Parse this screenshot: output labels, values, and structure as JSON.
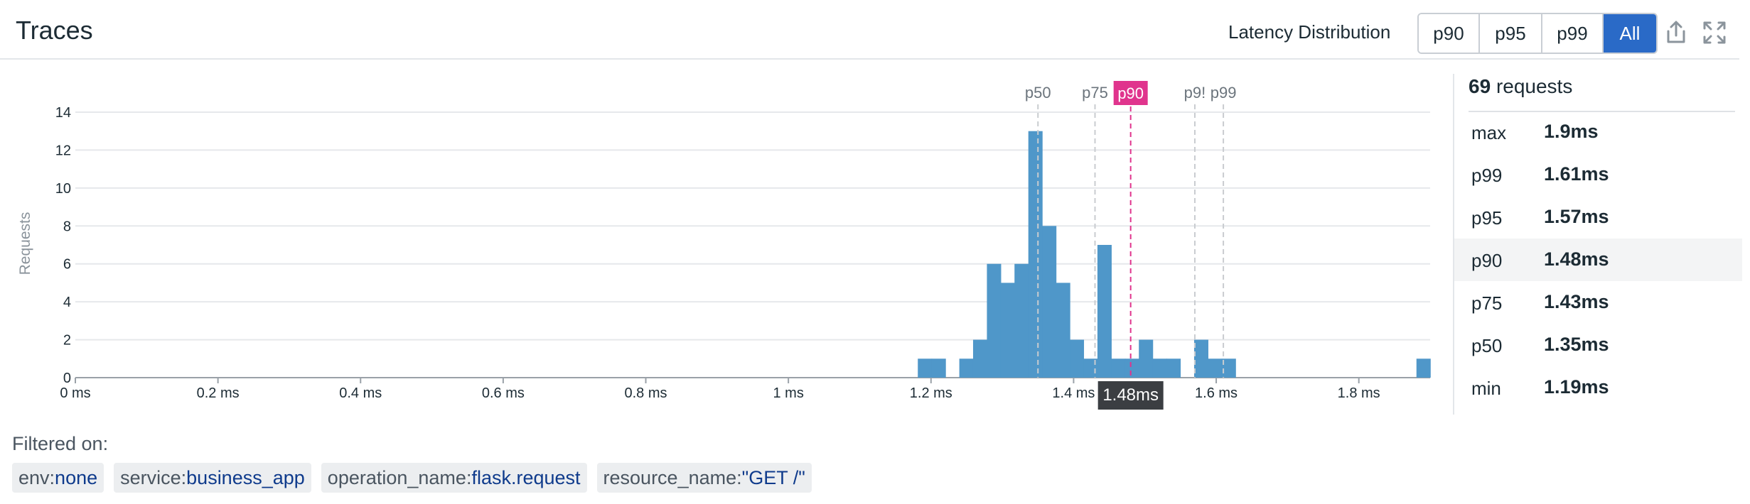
{
  "header": {
    "title": "Traces",
    "latency_label": "Latency Distribution",
    "buttons": [
      "p90",
      "p95",
      "p99",
      "All"
    ],
    "active_button": "All",
    "icons": [
      "share-icon",
      "expand-icon"
    ]
  },
  "colors": {
    "bar": "#4f97c9",
    "marker_highlight": "#e0348d",
    "active_button": "#2a6ac7",
    "percentile_line": "#c9ccd0"
  },
  "chart_data": {
    "type": "bar",
    "ylabel": "Requests",
    "xlabel": "",
    "xlim": [
      0,
      1.9
    ],
    "ylim": [
      0,
      14
    ],
    "x_unit": "ms",
    "yticks": [
      0,
      2,
      4,
      6,
      8,
      10,
      12,
      14
    ],
    "xticks": [
      {
        "value": 0,
        "label": "0 ms"
      },
      {
        "value": 0.2,
        "label": "0.2 ms"
      },
      {
        "value": 0.4,
        "label": "0.4 ms"
      },
      {
        "value": 0.6,
        "label": "0.6 ms"
      },
      {
        "value": 0.8,
        "label": "0.8 ms"
      },
      {
        "value": 1.0,
        "label": "1 ms"
      },
      {
        "value": 1.2,
        "label": "1.2 ms"
      },
      {
        "value": 1.4,
        "label": "1.4 ms"
      },
      {
        "value": 1.6,
        "label": "1.6 ms"
      },
      {
        "value": 1.8,
        "label": "1.8 ms"
      }
    ],
    "grid": true,
    "bin_width_ms": 0.01937,
    "bins": [
      {
        "start": 1.1815,
        "count": 1
      },
      {
        "start": 1.2009,
        "count": 1
      },
      {
        "start": 1.2397,
        "count": 1
      },
      {
        "start": 1.259,
        "count": 2
      },
      {
        "start": 1.2784,
        "count": 6
      },
      {
        "start": 1.2978,
        "count": 5
      },
      {
        "start": 1.3171,
        "count": 6
      },
      {
        "start": 1.3365,
        "count": 13
      },
      {
        "start": 1.3559,
        "count": 8
      },
      {
        "start": 1.3753,
        "count": 5
      },
      {
        "start": 1.3946,
        "count": 2
      },
      {
        "start": 1.414,
        "count": 1
      },
      {
        "start": 1.4334,
        "count": 7
      },
      {
        "start": 1.4528,
        "count": 1
      },
      {
        "start": 1.4721,
        "count": 1
      },
      {
        "start": 1.4915,
        "count": 2
      },
      {
        "start": 1.5109,
        "count": 1
      },
      {
        "start": 1.5302,
        "count": 1
      },
      {
        "start": 1.569,
        "count": 2
      },
      {
        "start": 1.5884,
        "count": 1
      },
      {
        "start": 1.6077,
        "count": 1
      },
      {
        "start": 1.8808,
        "count": 1
      }
    ],
    "percentile_markers": [
      {
        "label": "p50",
        "value": 1.35,
        "highlight": false
      },
      {
        "label": "p75",
        "value": 1.43,
        "highlight": false
      },
      {
        "label": "p90",
        "value": 1.48,
        "highlight": true
      },
      {
        "label": "p9!",
        "value": 1.57,
        "highlight": false
      },
      {
        "label": "p99",
        "value": 1.61,
        "highlight": false
      }
    ],
    "hover_value": 1.48,
    "tooltip": "1.48ms"
  },
  "stats": {
    "requests_count": "69",
    "requests_label": "requests",
    "rows": [
      {
        "key": "max",
        "value": "1.9ms"
      },
      {
        "key": "p99",
        "value": "1.61ms"
      },
      {
        "key": "p95",
        "value": "1.57ms"
      },
      {
        "key": "p90",
        "value": "1.48ms"
      },
      {
        "key": "p75",
        "value": "1.43ms"
      },
      {
        "key": "p50",
        "value": "1.35ms"
      },
      {
        "key": "min",
        "value": "1.19ms"
      }
    ],
    "highlighted_row": "p90"
  },
  "filters": {
    "label": "Filtered on:",
    "tags": [
      {
        "key": "env:",
        "value": "none"
      },
      {
        "key": "service:",
        "value": "business_app"
      },
      {
        "key": "operation_name:",
        "value": "flask.request"
      },
      {
        "key": "resource_name:",
        "value": "\"GET /\""
      }
    ]
  }
}
